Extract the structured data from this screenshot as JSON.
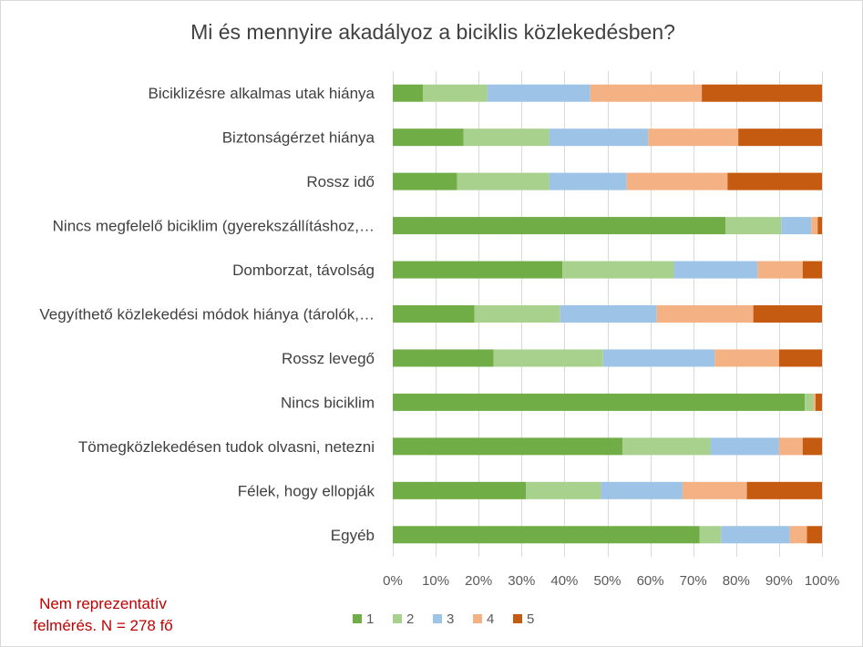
{
  "chart_data": {
    "type": "bar",
    "orientation": "horizontal",
    "stacking": "percent",
    "title": "Mi és mennyire akadályoz a biciklis közlekedésben?",
    "categories": [
      "Biciklizésre alkalmas utak hiánya",
      "Biztonságérzet hiánya",
      "Rossz idő",
      "Nincs megfelelő biciklim (gyerekszállításhoz,…",
      "Domborzat, távolság",
      "Vegyíthető közlekedési módok hiánya (tárolók,…",
      "Rossz levegő",
      "Nincs biciklim",
      "Tömegközlekedésen tudok olvasni, netezni",
      "Félek, hogy ellopják",
      "Egyéb"
    ],
    "series": [
      {
        "name": "1",
        "color": "#70ad47",
        "values": [
          7,
          16.5,
          15,
          77.5,
          39.5,
          19,
          23.5,
          96,
          53.5,
          31,
          71.5
        ]
      },
      {
        "name": "2",
        "color": "#a9d18e",
        "values": [
          15,
          20,
          21.5,
          13,
          26,
          20,
          25.5,
          2,
          20.5,
          17.5,
          5
        ]
      },
      {
        "name": "3",
        "color": "#9dc3e6",
        "values": [
          24,
          23,
          18,
          7,
          19.5,
          22.5,
          26,
          0,
          16,
          19,
          16
        ]
      },
      {
        "name": "4",
        "color": "#f4b183",
        "values": [
          26,
          21,
          23.5,
          1.5,
          10.5,
          22.5,
          15,
          0.5,
          5.5,
          15,
          4
        ]
      },
      {
        "name": "5",
        "color": "#c55a11",
        "values": [
          28,
          19.5,
          22,
          1,
          4.5,
          16,
          10,
          1.5,
          4.5,
          17.5,
          3.5
        ]
      }
    ],
    "xlim": [
      0,
      100
    ],
    "xticks": [
      "0%",
      "10%",
      "20%",
      "30%",
      "40%",
      "50%",
      "60%",
      "70%",
      "80%",
      "90%",
      "100%"
    ],
    "grid": "vertical",
    "legend": "bottom"
  },
  "note": {
    "line1": "Nem reprezentatív",
    "line2": "felmérés. N = 278 fő"
  }
}
